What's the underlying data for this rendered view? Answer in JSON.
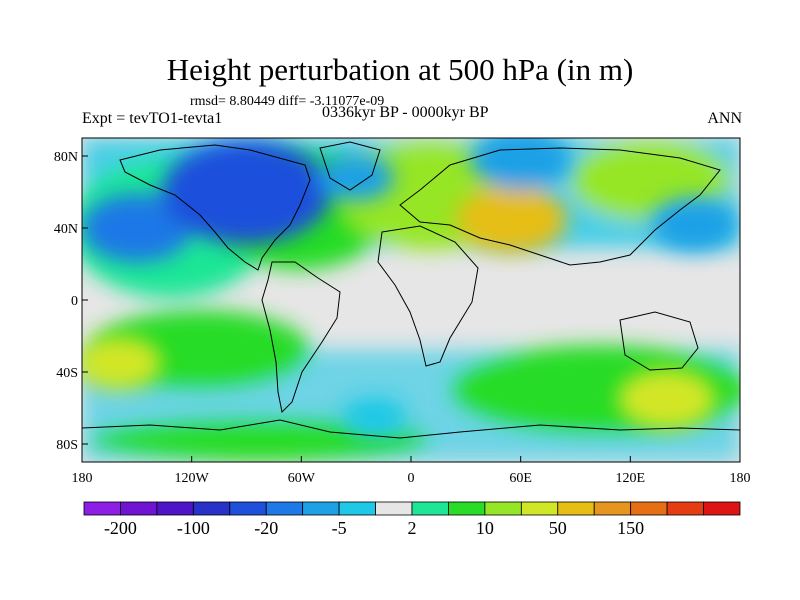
{
  "title": "Height perturbation at 500 hPa (in m)",
  "subtitle_left": "rmsd= 8.80449 diff= -3.11077e-09",
  "experiment": "Expt = tevTO1-tevta1",
  "period": "0336kyr BP - 0000kyr BP",
  "season": "ANN",
  "lat_ticks": [
    "80N",
    "40N",
    "0",
    "40S",
    "80S"
  ],
  "lon_ticks": [
    "180",
    "120W",
    "60W",
    "0",
    "60E",
    "120E",
    "180"
  ],
  "colorbar": {
    "colors": [
      "#8c1ee6",
      "#6e14d2",
      "#5014c8",
      "#2832c8",
      "#1e50dc",
      "#1e78e6",
      "#1ea0e6",
      "#1ec8e6",
      "#e6e6e6",
      "#1ee696",
      "#28dc28",
      "#96e628",
      "#d2e628",
      "#e6be14",
      "#e6961e",
      "#e66e14",
      "#e63c14",
      "#dc1414"
    ],
    "labels": [
      "-200",
      "-100",
      "-20",
      "-5",
      "2",
      "10",
      "50",
      "150"
    ]
  },
  "field_blobs": [
    {
      "name": "north-pacific-low",
      "lon": -150,
      "lat": 40,
      "level": -50
    },
    {
      "name": "canada-low",
      "lon": -90,
      "lat": 60,
      "level": -100
    },
    {
      "name": "north-atlantic-low",
      "lon": -30,
      "lat": 68,
      "level": -20
    },
    {
      "name": "eurasia-high",
      "lon": 55,
      "lat": 45,
      "level": 50
    },
    {
      "name": "siberia-low",
      "lon": 60,
      "lat": 78,
      "level": -40
    },
    {
      "name": "west-pacific-low",
      "lon": 155,
      "lat": 42,
      "level": -30
    },
    {
      "name": "south-pacific-high",
      "lon": -160,
      "lat": -35,
      "level": 30
    },
    {
      "name": "southern-ocean-high",
      "lon": 140,
      "lat": -55,
      "level": 40
    },
    {
      "name": "south-atlantic-low",
      "lon": -20,
      "lat": -65,
      "level": -10
    }
  ]
}
